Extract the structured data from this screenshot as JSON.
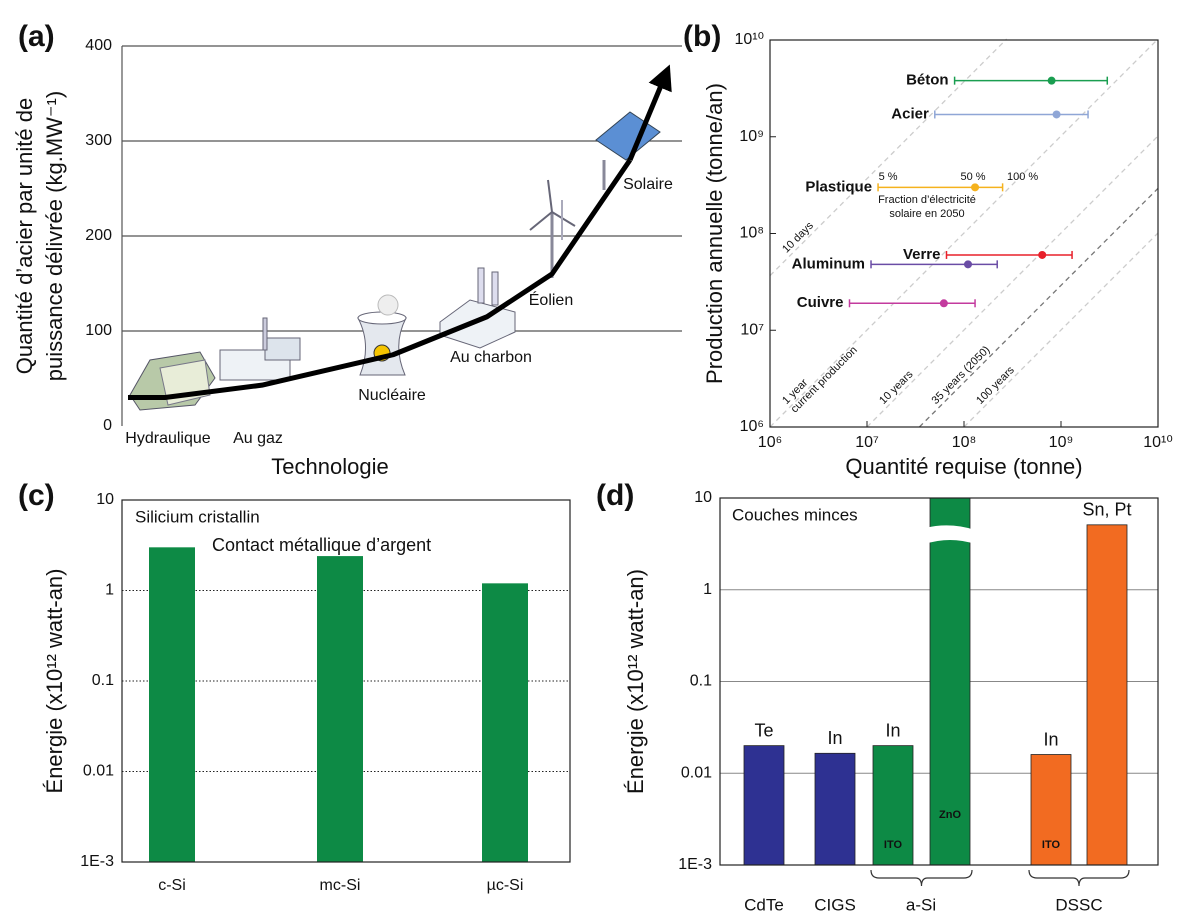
{
  "chart_data": [
    {
      "type": "line",
      "panel": "(a)",
      "ylabel": [
        "Quantité d’acier par unité de",
        "puissance délivrée (kg.MW⁻¹)"
      ],
      "xlabel": "Technologie",
      "categories": [
        "Hydraulique",
        "Au gaz",
        "Nucléaire",
        "Au charbon",
        "Éolien",
        "Solaire"
      ],
      "values": [
        30,
        43,
        75,
        115,
        160,
        280
      ],
      "color": "#000000",
      "ylim": [
        0,
        400
      ],
      "yticks": [
        0,
        100,
        200,
        300,
        400
      ],
      "grid": true
    },
    {
      "type": "scatter",
      "panel": "(b)",
      "xlabel": "Quantité requise (tonne)",
      "ylabel": "Production annuelle (tonne/an)",
      "xlog": true,
      "ylog": true,
      "xlim": [
        1000000,
        10000000000
      ],
      "ylim": [
        1000000,
        10000000000
      ],
      "xticks": [
        {
          "value": 1000000,
          "label": "10⁶"
        },
        {
          "value": 10000000,
          "label": "10⁷"
        },
        {
          "value": 100000000,
          "label": "10⁸"
        },
        {
          "value": 1000000000,
          "label": "10⁹"
        },
        {
          "value": 10000000000,
          "label": "10¹⁰"
        }
      ],
      "yticks": [
        {
          "value": 1000000,
          "label": "10⁶"
        },
        {
          "value": 10000000,
          "label": "10⁷"
        },
        {
          "value": 100000000,
          "label": "10⁸"
        },
        {
          "value": 1000000000,
          "label": "10⁹"
        },
        {
          "value": 10000000000,
          "label": "10¹⁰"
        }
      ],
      "series": [
        {
          "name": "Béton",
          "color": "#1a9e50",
          "x": 800000000,
          "y": 3800000000,
          "xmin": 80000000,
          "xmax": 3000000000
        },
        {
          "name": "Acier",
          "color": "#8fa6d6",
          "x": 900000000,
          "y": 1700000000,
          "xmin": 50000000,
          "xmax": 1900000000
        },
        {
          "name": "Plastique",
          "color": "#f5b21d",
          "x": 130000000,
          "y": 300000000,
          "xmin": 13000000,
          "xmax": 250000000
        },
        {
          "name": "Verre",
          "color": "#e8202a",
          "x": 640000000,
          "y": 60000000,
          "xmin": 66000000,
          "xmax": 1300000000
        },
        {
          "name": "Aluminum",
          "color": "#6a4ca5",
          "x": 110000000,
          "y": 48000000,
          "xmin": 11000000,
          "xmax": 220000000
        },
        {
          "name": "Cuivre",
          "color": "#c33a9e",
          "x": 62000000,
          "y": 19000000,
          "xmin": 6600000,
          "xmax": 130000000
        }
      ],
      "annotations": [
        "5 %",
        "50 %",
        "100 %",
        "Fraction d’électricité",
        "solaire en 2050"
      ],
      "reference_lines": [
        [
          "10 days"
        ],
        [
          "1 year",
          "current production"
        ],
        [
          "10 years"
        ],
        [
          "35 years (2050)"
        ],
        [
          "100 years"
        ]
      ]
    },
    {
      "type": "bar",
      "panel": "(c)",
      "ylabel": "Énergie (x10¹² watt-an)",
      "categories": [
        "c-Si",
        "mc-Si",
        "µc-Si"
      ],
      "values": [
        3.0,
        2.4,
        1.2
      ],
      "color": "#0d8a45",
      "ylog": true,
      "ylim": [
        0.001,
        10
      ],
      "yticks": [
        {
          "value": 0.001,
          "label": "1E-3"
        },
        0.01,
        0.1,
        1,
        10
      ],
      "grid": "dotted",
      "annotations": [
        "Silicium cristallin",
        "Contact métallique d’argent"
      ]
    },
    {
      "type": "grouped_bar",
      "panel": "(d)",
      "ylabel": "Énergie (x10¹² watt-an)",
      "ylog": true,
      "ylim": [
        0.001,
        10
      ],
      "yticks": [
        {
          "value": 0.001,
          "label": "1E-3"
        },
        0.01,
        0.1,
        1,
        10
      ],
      "grid": "solid",
      "groups": [
        {
          "name": "CdTe",
          "bars": [
            {
              "value": 0.02,
              "label": "Te",
              "color": "#2e3192"
            }
          ]
        },
        {
          "name": "CIGS",
          "bars": [
            {
              "value": 0.0165,
              "label": "In",
              "color": "#2e3192"
            }
          ]
        },
        {
          "name": "a-Si",
          "bars": [
            {
              "value": 0.02,
              "label": "In",
              "inner_label": "ITO",
              "color": "#0d8a45"
            },
            {
              "value": 10,
              "inner_label": "ZnO",
              "color": "#0d8a45"
            }
          ]
        },
        {
          "name": "DSSC",
          "bars": [
            {
              "value": 0.016,
              "label": "In",
              "inner_label": "ITO",
              "color": "#f26b21"
            },
            {
              "value": 5.1,
              "label": "Sn, Pt",
              "color": "#f26b21"
            }
          ]
        }
      ],
      "annotations": [
        "Couches minces"
      ]
    }
  ]
}
